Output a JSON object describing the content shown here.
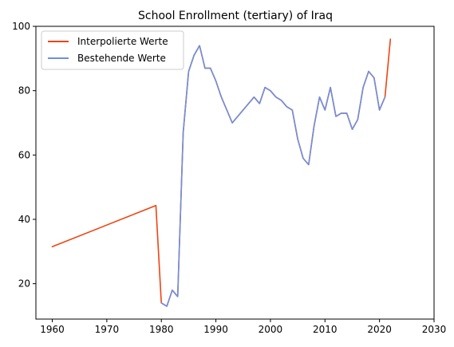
{
  "chart_data": {
    "type": "line",
    "title": "School Enrollment (tertiary) of Iraq",
    "xlabel": "",
    "ylabel": "",
    "xlim": [
      1957,
      2030
    ],
    "ylim": [
      9,
      100
    ],
    "xticks": [
      1960,
      1970,
      1980,
      1990,
      2000,
      2010,
      2020,
      2030
    ],
    "yticks": [
      20,
      40,
      60,
      80,
      100
    ],
    "grid": false,
    "legend_position": "top-left",
    "series": [
      {
        "name": "Interpolierte Werte",
        "color": "#ee4411",
        "x": [
          1960,
          1979,
          1980,
          1981,
          1982,
          1983,
          1984,
          1985,
          1986,
          1987,
          1988,
          1989,
          1990,
          1991,
          1993,
          1997,
          1998,
          1999,
          2000,
          2001,
          2002,
          2003,
          2004,
          2005,
          2006,
          2007,
          2008,
          2009,
          2010,
          2011,
          2012,
          2013,
          2014,
          2015,
          2016,
          2017,
          2018,
          2019,
          2020,
          2021,
          2022
        ],
        "y": [
          31.5,
          44.3,
          14,
          13,
          18,
          16,
          67,
          86,
          91,
          94,
          87,
          87,
          83,
          78,
          70,
          78,
          76,
          81,
          80,
          78,
          77,
          75,
          74,
          65,
          59,
          57,
          69,
          78,
          74,
          81,
          72,
          73,
          73,
          68,
          71,
          81,
          86,
          84,
          74,
          78,
          96
        ]
      },
      {
        "name": "Bestehende Werte",
        "color": "#6f8fdc",
        "x": [
          1980,
          1981,
          1982,
          1983,
          1984,
          1985,
          1986,
          1987,
          1988,
          1989,
          1990,
          1991,
          1993,
          1997,
          1998,
          1999,
          2000,
          2001,
          2002,
          2003,
          2004,
          2005,
          2006,
          2007,
          2008,
          2009,
          2010,
          2011,
          2012,
          2013,
          2014,
          2015,
          2016,
          2017,
          2018,
          2019,
          2020,
          2021
        ],
        "y": [
          14,
          13,
          18,
          16,
          67,
          86,
          91,
          94,
          87,
          87,
          83,
          78,
          70,
          78,
          76,
          81,
          80,
          78,
          77,
          75,
          74,
          65,
          59,
          57,
          69,
          78,
          74,
          81,
          72,
          73,
          73,
          68,
          71,
          81,
          86,
          84,
          74,
          78
        ]
      }
    ]
  }
}
